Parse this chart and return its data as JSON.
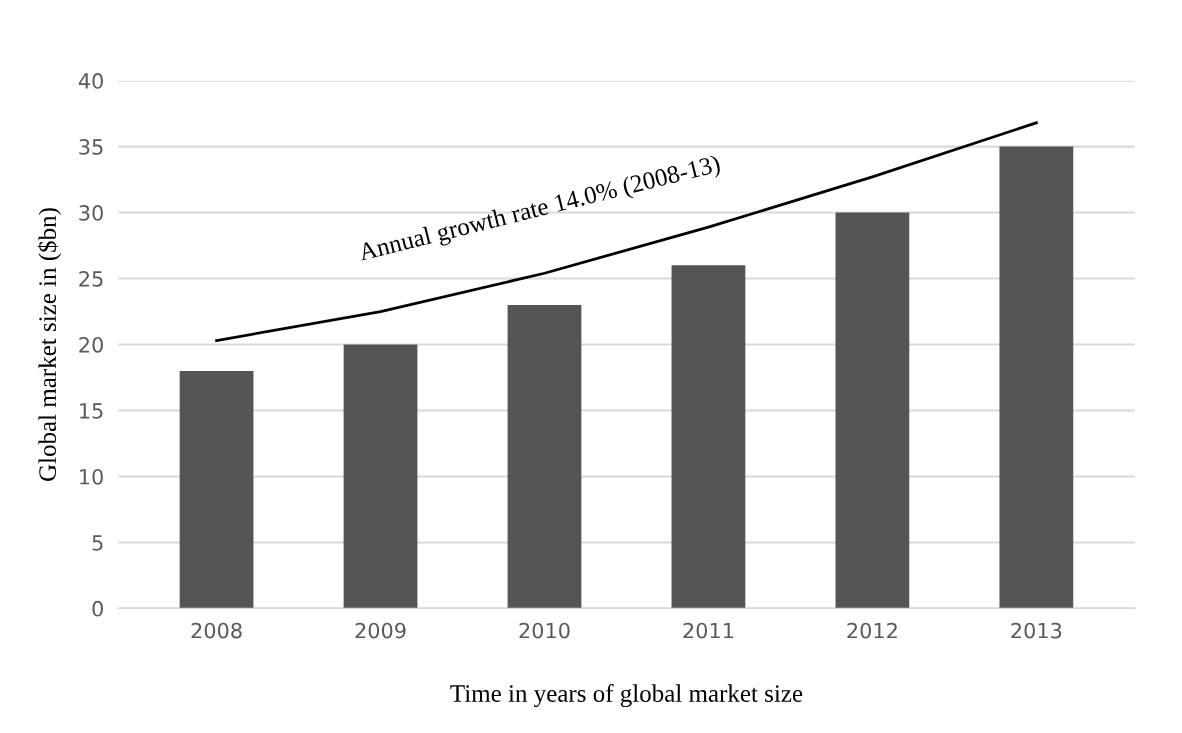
{
  "chart_data": {
    "type": "bar",
    "xlabel": "Time in years of global market size",
    "ylabel": "Global market size in ($bn)",
    "categories": [
      "2008",
      "2009",
      "2010",
      "2011",
      "2012",
      "2013"
    ],
    "series": [
      {
        "color": "#555555",
        "values": [
          18,
          20,
          23,
          26,
          30,
          35
        ]
      },
      {
        "type": "line",
        "color": "#000000",
        "values": [
          20.3,
          22.5,
          25.4,
          28.9,
          32.7,
          36.8
        ]
      }
    ],
    "ylim": [
      0,
      40
    ],
    "yticks": [
      0,
      5,
      10,
      15,
      20,
      25,
      30,
      35,
      40
    ],
    "grid": "y",
    "marker": "none",
    "line_style": "solid",
    "annotations": [
      "Annual growth rate 14.0% (2008-13)"
    ]
  }
}
